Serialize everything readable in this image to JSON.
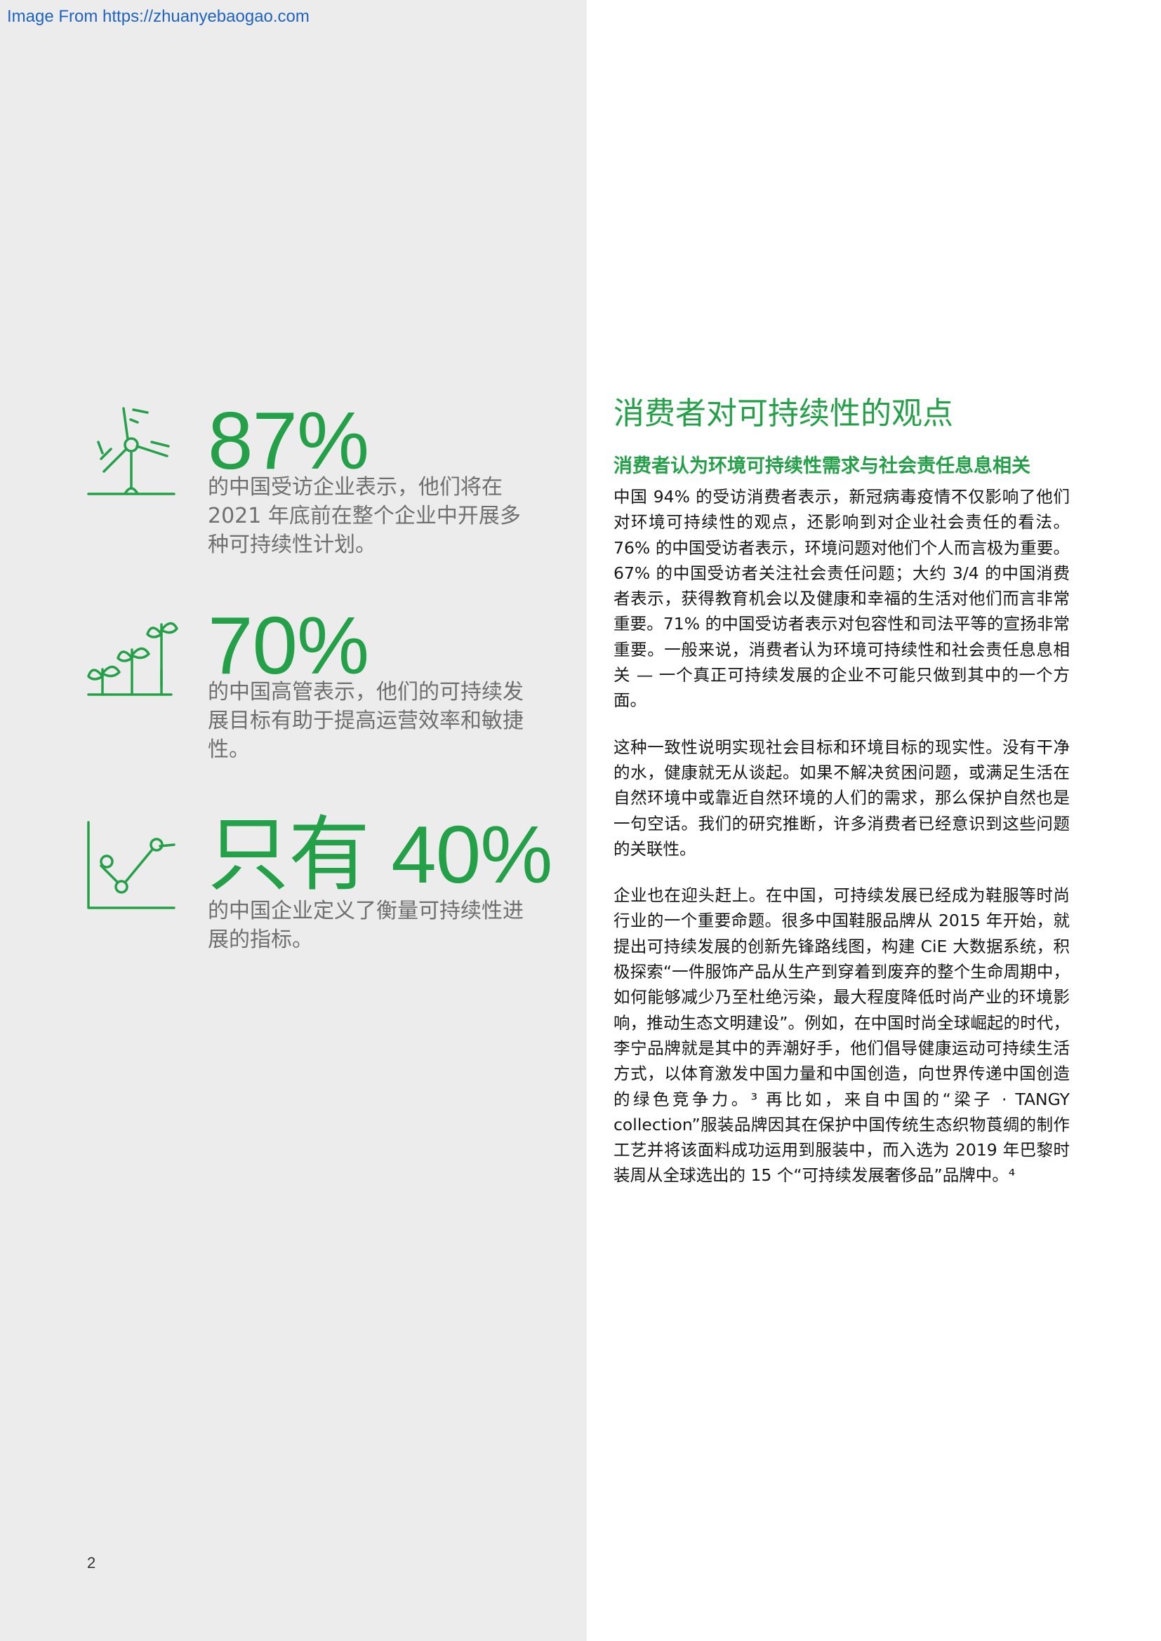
{
  "source_link": "Image From https://zhuanyebaogao.com",
  "page_number": "2",
  "stats": [
    {
      "icon": "wind-turbine-icon",
      "number": "87%",
      "text": "的中国受访企业表示，他们将在2021 年底前在整个企业中开展多种可持续性计划。"
    },
    {
      "icon": "plant-growth-icon",
      "number": "70%",
      "text": "的中国高管表示，他们的可持续发展目标有助于提高运营效率和敏捷性。"
    },
    {
      "icon": "line-chart-icon",
      "number": "只有 40%",
      "text": "的中国企业定义了衡量可持续性进展的指标。"
    }
  ],
  "article": {
    "title": "消费者对可持续性的观点",
    "subtitle": "消费者认为环境可持续性需求与社会责任息息相关",
    "paragraphs": [
      "中国 94% 的受访消费者表示，新冠病毒疫情不仅影响了他们对环境可持续性的观点，还影响到对企业社会责任的看法。76% 的中国受访者表示，环境问题对他们个人而言极为重要。67% 的中国受访者关注社会责任问题；大约 3/4 的中国消费者表示，获得教育机会以及健康和幸福的生活对他们而言非常重要。71% 的中国受访者表示对包容性和司法平等的宣扬非常重要。一般来说，消费者认为环境可持续性和社会责任息息相关 — 一个真正可持续发展的企业不可能只做到其中的一个方面。",
      "这种一致性说明实现社会目标和环境目标的现实性。没有干净的水，健康就无从谈起。如果不解决贫困问题，或满足生活在自然环境中或靠近自然环境的人们的需求，那么保护自然也是一句空话。我们的研究推断，许多消费者已经意识到这些问题的关联性。",
      "企业也在迎头赶上。在中国，可持续发展已经成为鞋服等时尚行业的一个重要命题。很多中国鞋服品牌从 2015 年开始，就提出可持续发展的创新先锋路线图，构建 CiE 大数据系统，积极探索“一件服饰产品从生产到穿着到废弃的整个生命周期中，如何能够减少乃至杜绝污染，最大程度降低时尚产业的环境影响，推动生态文明建设”。例如，在中国时尚全球崛起的时代，李宁品牌就是其中的弄潮好手，他们倡导健康运动可持续生活方式，以体育激发中国力量和中国创造，向世界传递中国创造的绿色竞争力。³ 再比如，来自中国的“梁子 · TANGY collection”服装品牌因其在保护中国传统生态织物莨绸的制作工艺并将该面料成功运用到服装中，而入选为 2019 年巴黎时装周从全球选出的 15 个“可持续发展奢侈品”品牌中。⁴"
    ]
  },
  "colors": {
    "accent_green": "#24a148",
    "panel_gray": "#ececec",
    "stat_text_gray": "#6f6f6f",
    "link_blue": "#1f63c2"
  }
}
